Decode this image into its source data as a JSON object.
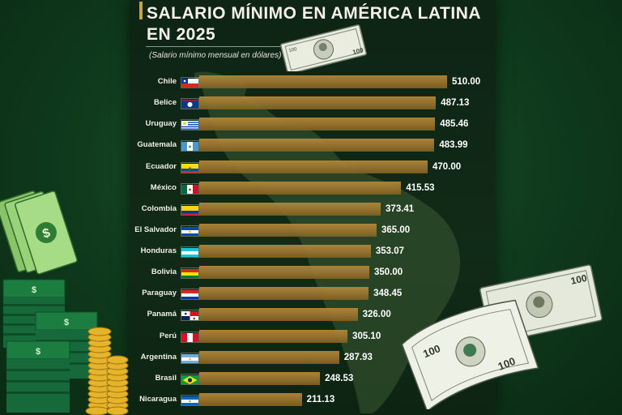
{
  "chart_data": {
    "type": "bar",
    "orientation": "horizontal",
    "title": "SALARIO MÍNIMO EN AMÉRICA LATINA\nEN 2025",
    "subtitle": "(Salario mínimo mensual en dólares)",
    "categories": [
      "Chile",
      "Belice",
      "Uruguay",
      "Guatemala",
      "Ecuador",
      "México",
      "Colombia",
      "El Salvador",
      "Honduras",
      "Bolivia",
      "Paraguay",
      "Panamá",
      "Perú",
      "Argentina",
      "Brasil",
      "Nicaragua"
    ],
    "values": [
      510.0,
      487.13,
      485.46,
      483.99,
      470.0,
      415.53,
      373.41,
      365.0,
      353.07,
      350.0,
      348.45,
      326.0,
      305.1,
      287.93,
      248.53,
      211.13
    ],
    "value_labels": [
      "510.00",
      "487.13",
      "485.46",
      "483.99",
      "470.00",
      "415.53",
      "373.41",
      "365.00",
      "353.07",
      "350.00",
      "348.45",
      "326.00",
      "305.10",
      "287.93",
      "248.53",
      "211.13"
    ],
    "xlim": [
      0,
      510
    ],
    "grid": false,
    "bar_color": "#a27a33"
  },
  "flags": [
    "chile",
    "belize",
    "uruguay",
    "guatemala",
    "ecuador",
    "mexico",
    "colombia",
    "el-salvador",
    "honduras",
    "bolivia",
    "paraguay",
    "panama",
    "peru",
    "argentina",
    "brazil",
    "nicaragua"
  ],
  "decorations": {
    "top_bill_icon": "dollar-bill-icon",
    "right_bill_icon": "dollar-bills-icon",
    "left_money_icon": "cash-stacks-and-coins-icon",
    "map_icon": "latin-america-map-silhouette"
  }
}
